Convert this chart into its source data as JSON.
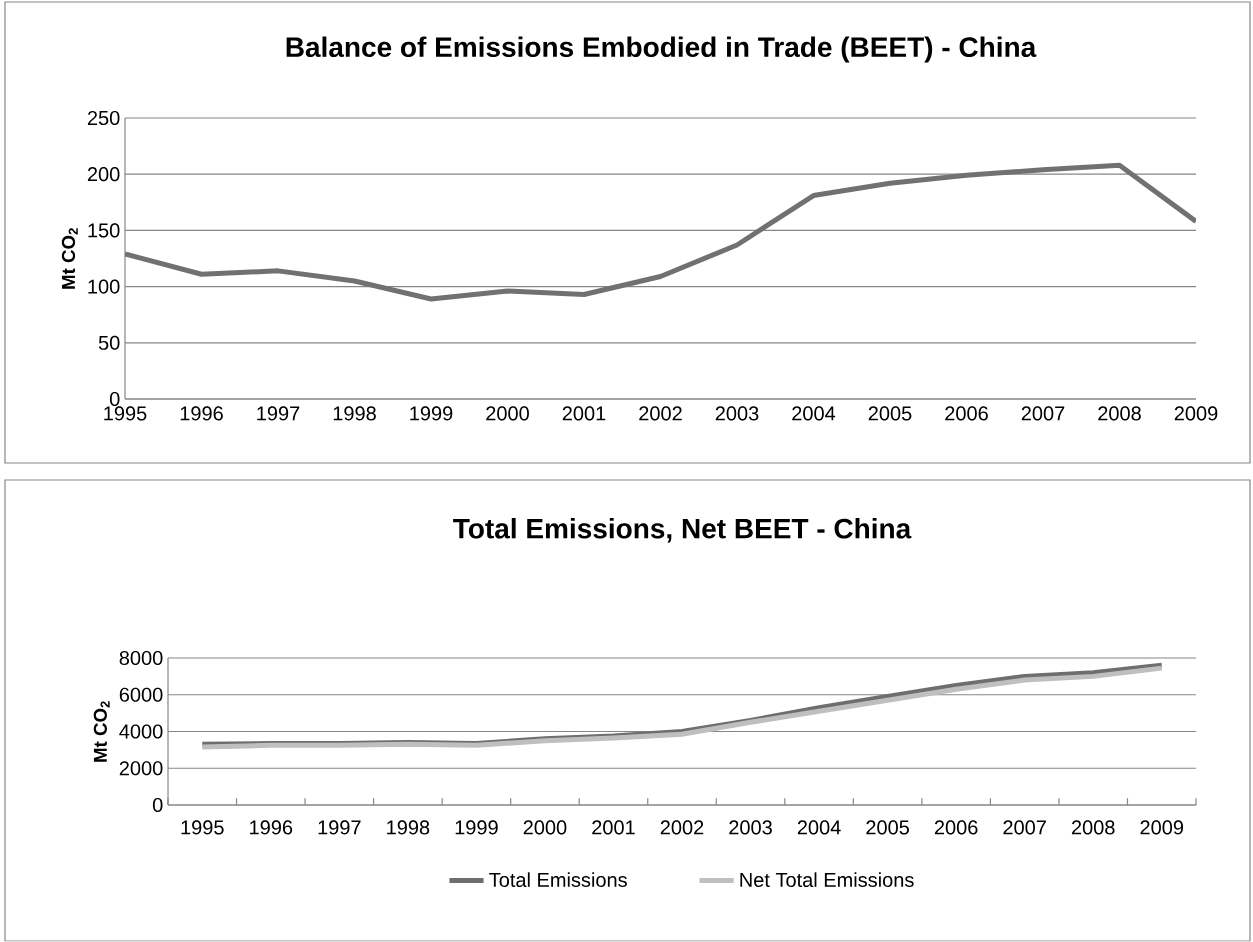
{
  "chart_data": [
    {
      "type": "line",
      "title": "Balance of Emissions Embodied in Trade (BEET) - China",
      "ylabel": "Mt CO$_{2}$",
      "categories": [
        "1995",
        "1996",
        "1997",
        "1998",
        "1999",
        "2000",
        "2001",
        "2002",
        "2003",
        "2004",
        "2005",
        "2006",
        "2007",
        "2008",
        "2009"
      ],
      "series": [
        {
          "color": "#717171",
          "values": [
            129,
            111,
            114,
            105,
            89,
            96,
            93,
            109,
            137,
            181,
            192,
            199,
            204,
            208,
            158
          ]
        }
      ],
      "ylim": [
        0,
        250
      ],
      "yticks": [
        0,
        50,
        100,
        150,
        200,
        250
      ],
      "grid": "y",
      "legend": false
    },
    {
      "type": "line",
      "title": "Total Emissions, Net BEET - China",
      "ylabel": "Mt CO$_{2}$",
      "categories": [
        "1995",
        "1996",
        "1997",
        "1998",
        "1999",
        "2000",
        "2001",
        "2002",
        "2003",
        "2004",
        "2005",
        "2006",
        "2007",
        "2008",
        "2009"
      ],
      "series": [
        {
          "name": "Total Emissions",
          "color": "#6e6e6e",
          "values": [
            3300,
            3350,
            3350,
            3400,
            3350,
            3600,
            3750,
            4000,
            4600,
            5300,
            5900,
            6500,
            7000,
            7200,
            7600
          ]
        },
        {
          "name": "Net Total Emissions",
          "color": "#bfbfbf",
          "values": [
            3150,
            3250,
            3250,
            3300,
            3250,
            3500,
            3650,
            3850,
            4500,
            5100,
            5700,
            6300,
            6800,
            7000,
            7450
          ]
        }
      ],
      "ylim": [
        0,
        8000
      ],
      "yticks": [
        0,
        2000,
        4000,
        6000,
        8000
      ],
      "grid": "y",
      "legend": "bottom"
    }
  ]
}
